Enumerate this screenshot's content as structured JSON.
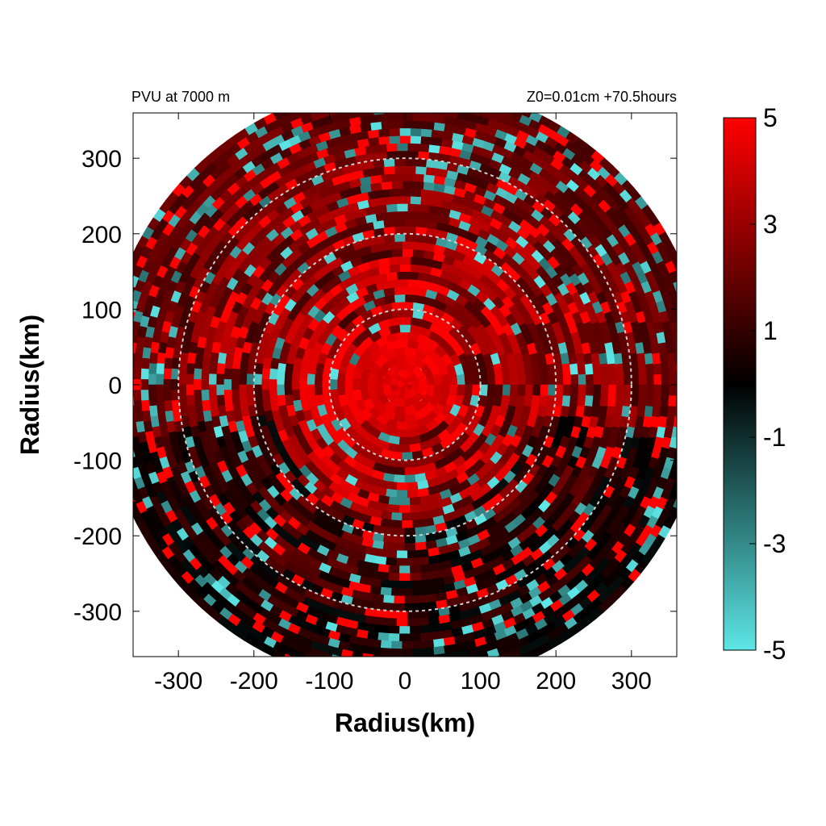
{
  "chart_data": {
    "type": "heatmap",
    "projection": "polar field on cartesian axes",
    "title_left": "PVU at  7000 m",
    "title_right": "Z0=0.01cm  +70.5hours",
    "xlabel": "Radius(km)",
    "ylabel": "Radius(km)",
    "xlim": [
      -360,
      360
    ],
    "ylim": [
      -360,
      360
    ],
    "x_ticks": [
      -300,
      -200,
      -100,
      0,
      100,
      200,
      300
    ],
    "y_ticks": [
      -300,
      -200,
      -100,
      0,
      100,
      200,
      300
    ],
    "domain_radius_km": 400,
    "reference_circles_km": [
      100,
      200,
      300
    ],
    "grid": false,
    "colorbar": {
      "range": [
        -5,
        5
      ],
      "tick_values": [
        5,
        3,
        1,
        -1,
        -3,
        -5
      ],
      "tick_labels": [
        "5",
        "3",
        "1",
        "-1",
        "-3",
        "-5"
      ],
      "color_stops": [
        {
          "value": -5,
          "color": "#5ee6e6"
        },
        {
          "value": -2.5,
          "color": "#2a7373"
        },
        {
          "value": 0,
          "color": "#000000"
        },
        {
          "value": 2.5,
          "color": "#800000"
        },
        {
          "value": 5,
          "color": "#ff0000"
        }
      ]
    },
    "core_value": 5,
    "core_radius_km": 70
  },
  "colors": {
    "background": "#ffffff",
    "axes": "#000000",
    "reference_circle": "#d0d0d0",
    "positive_max": "#ff0000",
    "negative_max": "#5ee6e6"
  }
}
